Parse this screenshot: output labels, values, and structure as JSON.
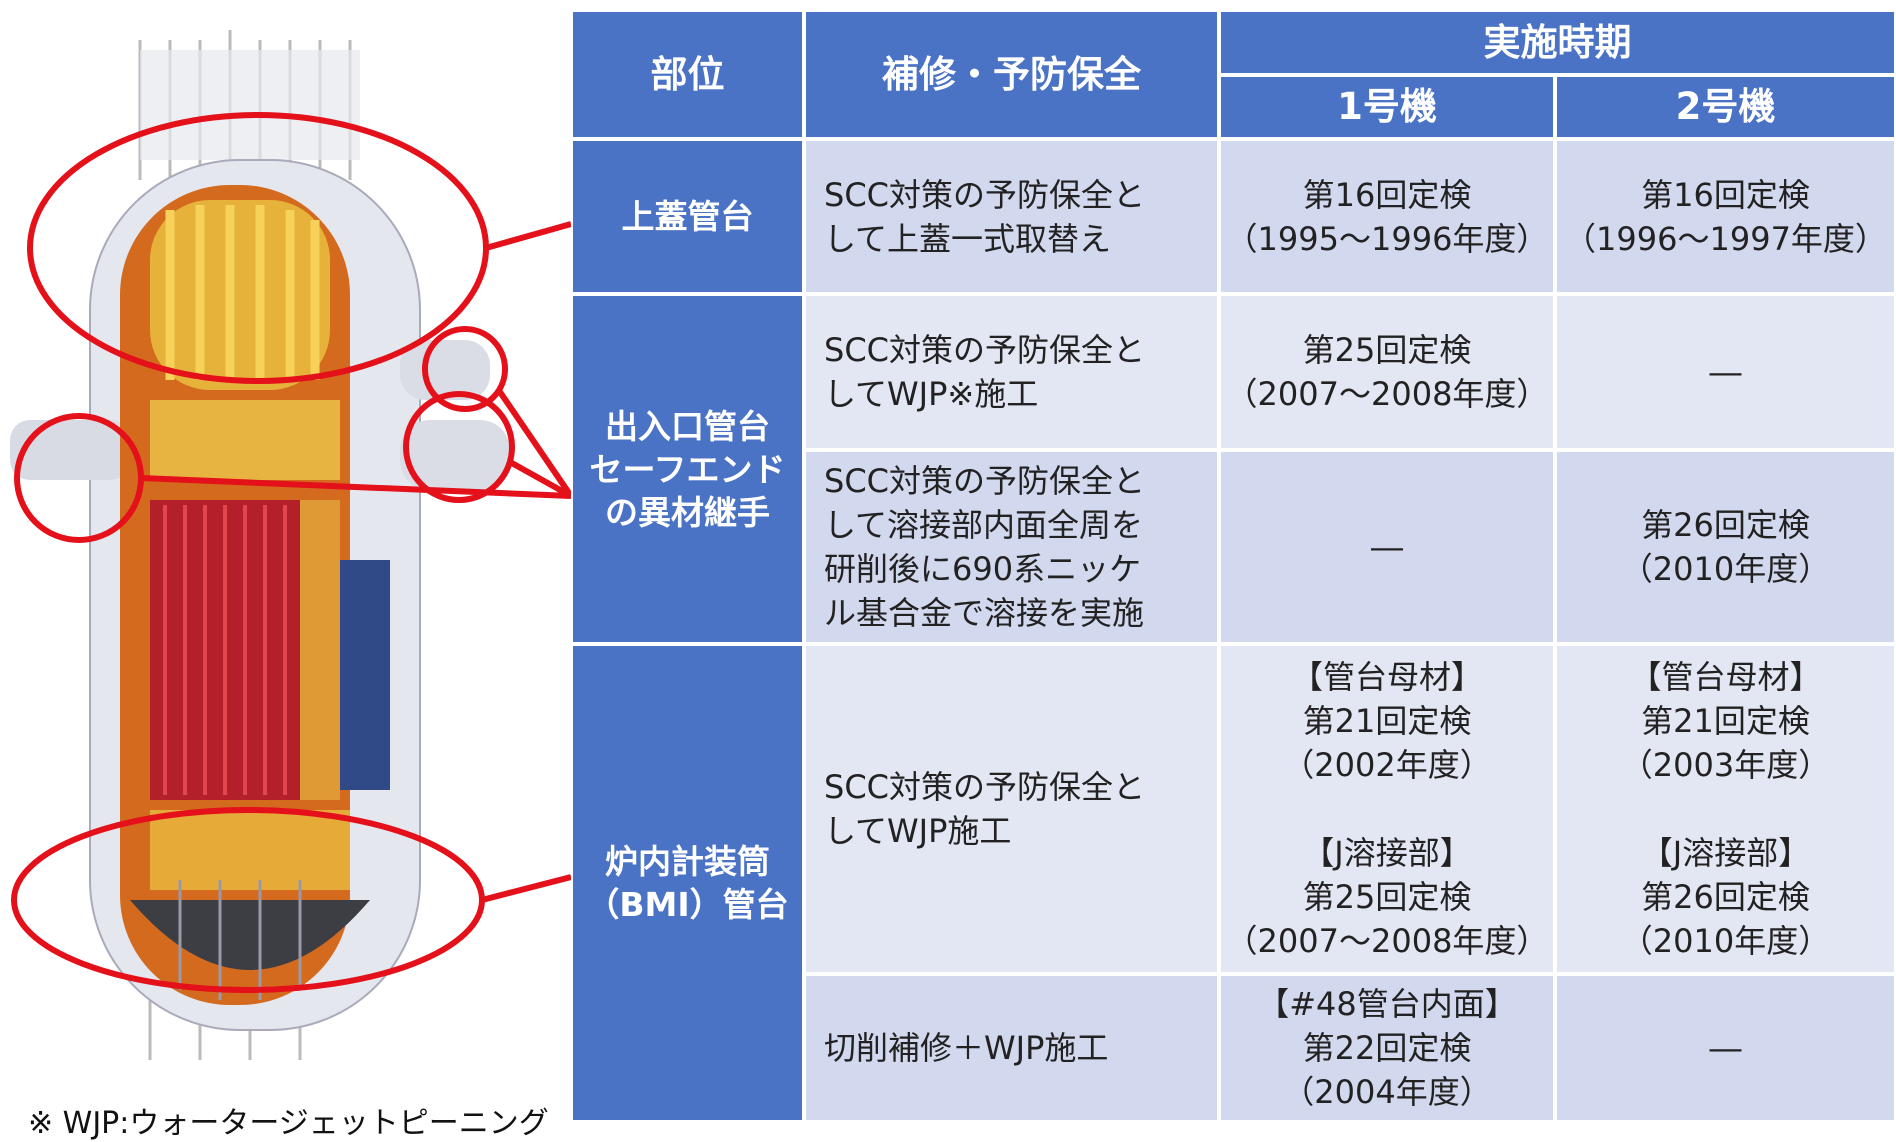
{
  "header": {
    "part": "部位",
    "repair": "補修・予防保全",
    "period": "実施時期",
    "unit1": "1号機",
    "unit2": "2号機"
  },
  "table": {
    "groups": [
      {
        "part": [
          "上蓋管台"
        ],
        "items": [
          {
            "repair": [
              "SCC対策の予防保全と",
              "して上蓋一式取替え"
            ],
            "unit1": [
              [
                "第16回定検",
                "（1995～1996年度）"
              ]
            ],
            "unit2": [
              [
                "第16回定検",
                "（1996～1997年度）"
              ]
            ]
          }
        ]
      },
      {
        "part": [
          "出入口管台",
          "セーフエンド",
          "の異材継手"
        ],
        "items": [
          {
            "repair": [
              "SCC対策の予防保全と",
              "してWJP※施工"
            ],
            "unit1": [
              [
                "第25回定検",
                "（2007～2008年度）"
              ]
            ],
            "unit2": [
              [
                "―"
              ]
            ]
          },
          {
            "repair": [
              "SCC対策の予防保全と",
              "して溶接部内面全周を",
              "研削後に690系ニッケ",
              "ル基合金で溶接を実施"
            ],
            "unit1": [
              [
                "―"
              ]
            ],
            "unit2": [
              [
                "第26回定検",
                "（2010年度）"
              ]
            ]
          }
        ]
      },
      {
        "part": [
          "炉内計装筒",
          "（BMI）管台"
        ],
        "items": [
          {
            "repair": [
              "SCC対策の予防保全と",
              "してWJP施工"
            ],
            "unit1": [
              [
                "【管台母材】",
                "第21回定検",
                "（2002年度）"
              ],
              [
                "【J溶接部】",
                "第25回定検",
                "（2007～2008年度）"
              ]
            ],
            "unit2": [
              [
                "【管台母材】",
                "第21回定検",
                "（2003年度）"
              ],
              [
                "【J溶接部】",
                "第26回定検",
                "（2010年度）"
              ]
            ]
          },
          {
            "repair": [
              "切削補修＋WJP施工"
            ],
            "unit1": [
              [
                "【#48管台内面】",
                "第22回定検",
                "（2004年度）"
              ]
            ],
            "unit2": [
              [
                "―"
              ]
            ]
          }
        ]
      }
    ]
  },
  "footnote": "※ WJP:ウォータージェットピーニング"
}
